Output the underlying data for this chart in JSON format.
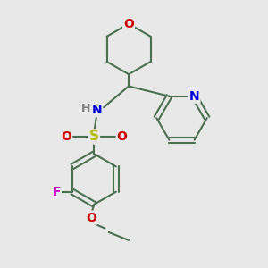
{
  "bg_color": "#e8e8e8",
  "bond_color": "#4a7050",
  "bond_width": 1.5,
  "atom_colors": {
    "O": "#cc0000",
    "N": "#0000dd",
    "S": "#bbbb00",
    "F": "#cc00cc",
    "H": "#808080",
    "C": "#4a7050"
  },
  "font_size": 9,
  "fig_width": 3.0,
  "fig_height": 3.0,
  "dpi": 100
}
